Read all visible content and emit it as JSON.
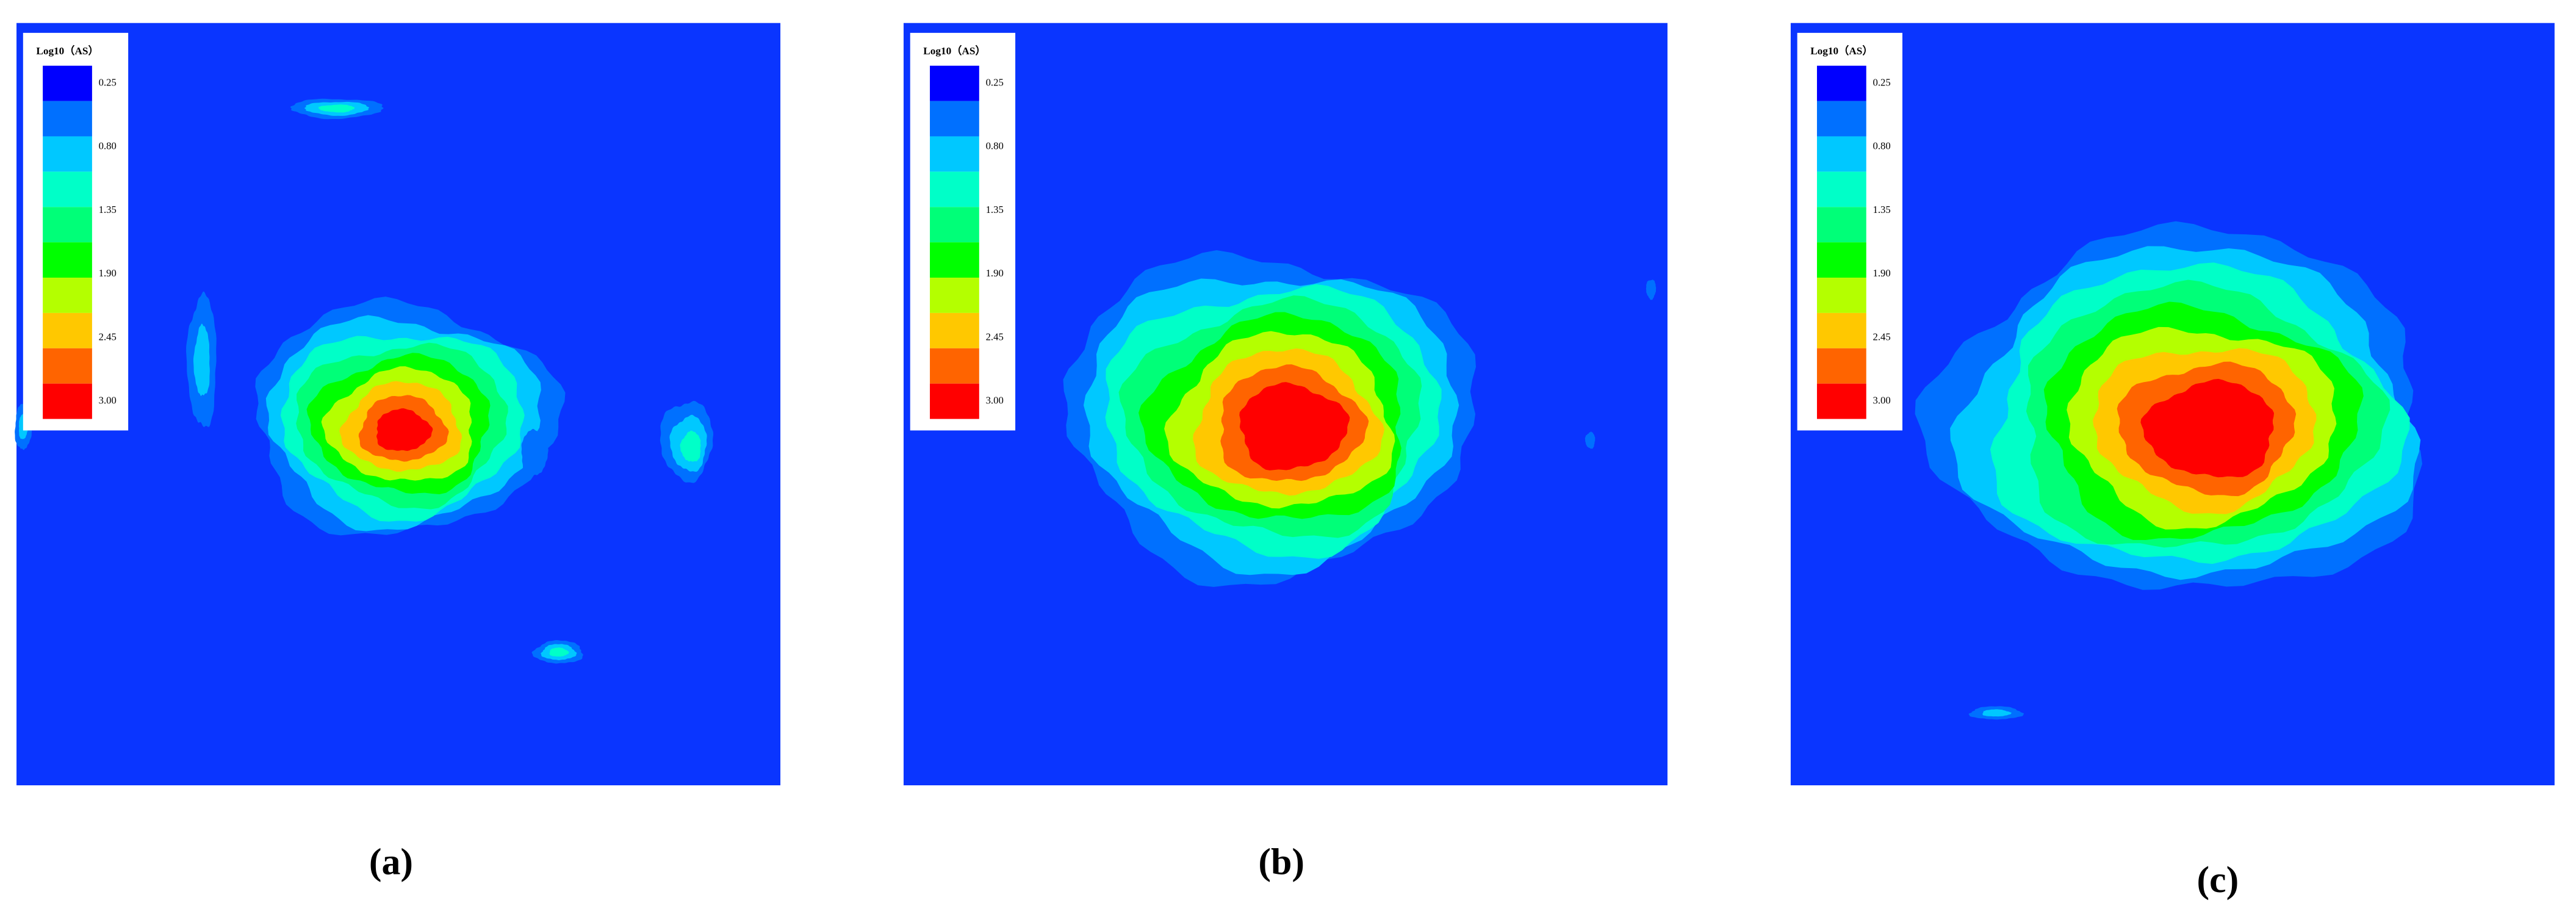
{
  "panels": [
    {
      "label": "(a)"
    },
    {
      "label": "(b)"
    },
    {
      "label": "(c)"
    }
  ],
  "legend": {
    "title": "Log10（AS）",
    "ticks": [
      "0.25",
      "0.80",
      "1.35",
      "1.90",
      "2.45",
      "3.00"
    ],
    "colors": [
      "#0000ff",
      "#0070ff",
      "#00c8ff",
      "#00ffc8",
      "#00ff78",
      "#00ff00",
      "#b4ff00",
      "#ffc800",
      "#ff6400",
      "#ff0000"
    ]
  }
}
